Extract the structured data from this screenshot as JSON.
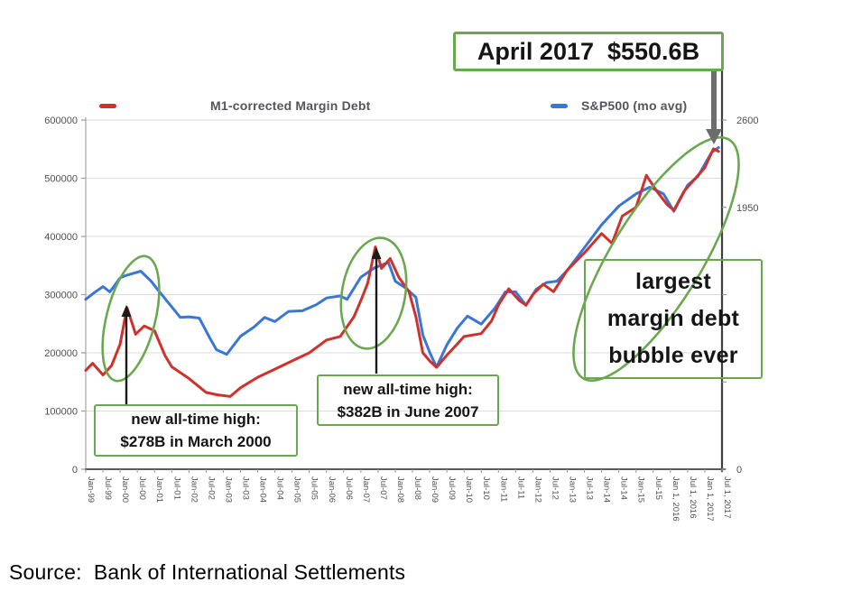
{
  "accent_colors": {
    "annotation_green": "#6aa84f",
    "margin_debt_red": "#cf312c",
    "sp500_blue": "#3a76d8",
    "big_arrow_gray": "#6d6d6d",
    "small_arrow_black": "#1a1a1a"
  },
  "legend": {
    "items": [
      {
        "label": "M1-corrected Margin Debt",
        "color": "#cf312c"
      },
      {
        "label": "S&P500 (mo avg)",
        "color": "#3a76d8"
      }
    ]
  },
  "annotations": {
    "april_label": "April 2017  $550.6B",
    "high_2000": {
      "line1": "new all-time high:",
      "line2": "$278B in March 2000"
    },
    "high_2007": {
      "line1": "new all-time high:",
      "line2": "$382B in June 2007"
    },
    "bubble": {
      "line1": "largest",
      "line2": "margin debt",
      "line3": "bubble ever"
    }
  },
  "source": "Source:  Bank of International Settlements",
  "chart_data": {
    "type": "line",
    "title": "",
    "legend_position": "top",
    "grid": true,
    "x_axis": {
      "first_tick_year": 1999.0,
      "tick_step_years": 0.5,
      "tick_labels": [
        "Jan-99",
        "Jul-99",
        "Jan-00",
        "Jul-00",
        "Jan-01",
        "Jul-01",
        "Jan-02",
        "Jul-02",
        "Jan-03",
        "Jul-03",
        "Jan-04",
        "Jul-04",
        "Jan-05",
        "Jul-05",
        "Jan-06",
        "Jul-06",
        "Jan-07",
        "Jul-07",
        "Jan-08",
        "Jul-08",
        "Jan-09",
        "Jul-09",
        "Jan-10",
        "Jul-10",
        "Jan-11",
        "Jul-11",
        "Jan-12",
        "Jul-12",
        "Jan-13",
        "Jul-13",
        "Jan-14",
        "Jul-14",
        "Jan-15",
        "Jul-15",
        "Jan 1, 2016",
        "Jul 1, 2016",
        "Jan 1, 2017",
        "Jul 1, 2017"
      ]
    },
    "y_left": {
      "min": 0,
      "max": 600000,
      "ticks": [
        0,
        100000,
        200000,
        300000,
        400000,
        500000,
        600000
      ],
      "tick_labels": [
        "0",
        "100000",
        "200000",
        "300000",
        "400000",
        "500000",
        "600000"
      ]
    },
    "y_right": {
      "min": 0,
      "max": 2600,
      "ticks": [
        0,
        650,
        1300,
        1950,
        2600
      ],
      "tick_labels": [
        "0",
        "",
        "",
        "1950",
        "2600"
      ]
    },
    "labeled_points": [
      {
        "series": "M1-corrected Margin Debt",
        "date": "March 2000",
        "value": 278000,
        "value_label": "$278B"
      },
      {
        "series": "M1-corrected Margin Debt",
        "date": "June 2007",
        "value": 382000,
        "value_label": "$382B"
      },
      {
        "series": "M1-corrected Margin Debt",
        "date": "April 2017",
        "value": 550600,
        "value_label": "$550.6B"
      }
    ],
    "series": [
      {
        "name": "M1-corrected Margin Debt",
        "axis": "left",
        "color": "#cf312c",
        "points": [
          [
            1999.0,
            170000
          ],
          [
            1999.2,
            182000
          ],
          [
            1999.5,
            162000
          ],
          [
            1999.75,
            178000
          ],
          [
            2000.0,
            215000
          ],
          [
            2000.2,
            278000
          ],
          [
            2000.45,
            232000
          ],
          [
            2000.7,
            246000
          ],
          [
            2001.0,
            238000
          ],
          [
            2001.3,
            196000
          ],
          [
            2001.5,
            176000
          ],
          [
            2002.0,
            156000
          ],
          [
            2002.5,
            132000
          ],
          [
            2002.8,
            128000
          ],
          [
            2003.2,
            125000
          ],
          [
            2003.5,
            140000
          ],
          [
            2004.0,
            158000
          ],
          [
            2004.5,
            172000
          ],
          [
            2005.0,
            186000
          ],
          [
            2005.5,
            200000
          ],
          [
            2006.0,
            222000
          ],
          [
            2006.4,
            228000
          ],
          [
            2006.8,
            262000
          ],
          [
            2007.0,
            290000
          ],
          [
            2007.2,
            320000
          ],
          [
            2007.42,
            382000
          ],
          [
            2007.6,
            345000
          ],
          [
            2007.85,
            362000
          ],
          [
            2008.1,
            330000
          ],
          [
            2008.4,
            305000
          ],
          [
            2008.6,
            262000
          ],
          [
            2008.8,
            200000
          ],
          [
            2009.0,
            186000
          ],
          [
            2009.2,
            175000
          ],
          [
            2009.5,
            196000
          ],
          [
            2009.8,
            215000
          ],
          [
            2010.0,
            228000
          ],
          [
            2010.5,
            233000
          ],
          [
            2010.8,
            255000
          ],
          [
            2011.0,
            282000
          ],
          [
            2011.3,
            310000
          ],
          [
            2011.6,
            290000
          ],
          [
            2011.8,
            282000
          ],
          [
            2012.0,
            300000
          ],
          [
            2012.3,
            318000
          ],
          [
            2012.6,
            305000
          ],
          [
            2013.0,
            342000
          ],
          [
            2013.5,
            372000
          ],
          [
            2014.0,
            405000
          ],
          [
            2014.3,
            388000
          ],
          [
            2014.6,
            435000
          ],
          [
            2015.0,
            450000
          ],
          [
            2015.3,
            505000
          ],
          [
            2015.6,
            478000
          ],
          [
            2015.9,
            455000
          ],
          [
            2016.1,
            445000
          ],
          [
            2016.4,
            478000
          ],
          [
            2016.7,
            498000
          ],
          [
            2017.0,
            518000
          ],
          [
            2017.25,
            550600
          ],
          [
            2017.4,
            546000
          ]
        ]
      },
      {
        "name": "S&P500 (mo avg)",
        "axis": "right",
        "color": "#3a76d8",
        "points": [
          [
            1999.0,
            1265
          ],
          [
            1999.25,
            1315
          ],
          [
            1999.5,
            1360
          ],
          [
            1999.7,
            1320
          ],
          [
            2000.0,
            1425
          ],
          [
            2000.2,
            1445
          ],
          [
            2000.6,
            1475
          ],
          [
            2000.9,
            1400
          ],
          [
            2001.1,
            1335
          ],
          [
            2001.4,
            1240
          ],
          [
            2001.75,
            1130
          ],
          [
            2002.0,
            1135
          ],
          [
            2002.3,
            1125
          ],
          [
            2002.6,
            980
          ],
          [
            2002.8,
            890
          ],
          [
            2003.1,
            855
          ],
          [
            2003.5,
            990
          ],
          [
            2003.9,
            1060
          ],
          [
            2004.2,
            1130
          ],
          [
            2004.5,
            1100
          ],
          [
            2004.9,
            1175
          ],
          [
            2005.3,
            1180
          ],
          [
            2005.7,
            1225
          ],
          [
            2006.0,
            1275
          ],
          [
            2006.4,
            1290
          ],
          [
            2006.6,
            1265
          ],
          [
            2007.0,
            1430
          ],
          [
            2007.4,
            1500
          ],
          [
            2007.8,
            1540
          ],
          [
            2008.0,
            1400
          ],
          [
            2008.3,
            1350
          ],
          [
            2008.6,
            1280
          ],
          [
            2008.8,
            1000
          ],
          [
            2009.0,
            870
          ],
          [
            2009.2,
            760
          ],
          [
            2009.5,
            925
          ],
          [
            2009.8,
            1050
          ],
          [
            2010.1,
            1140
          ],
          [
            2010.5,
            1080
          ],
          [
            2010.9,
            1200
          ],
          [
            2011.2,
            1320
          ],
          [
            2011.5,
            1320
          ],
          [
            2011.8,
            1220
          ],
          [
            2012.1,
            1340
          ],
          [
            2012.4,
            1390
          ],
          [
            2012.7,
            1400
          ],
          [
            2013.0,
            1480
          ],
          [
            2013.5,
            1650
          ],
          [
            2014.0,
            1820
          ],
          [
            2014.5,
            1960
          ],
          [
            2015.0,
            2050
          ],
          [
            2015.4,
            2100
          ],
          [
            2015.8,
            2050
          ],
          [
            2016.1,
            1920
          ],
          [
            2016.5,
            2115
          ],
          [
            2016.8,
            2180
          ],
          [
            2017.0,
            2270
          ],
          [
            2017.2,
            2360
          ],
          [
            2017.4,
            2395
          ]
        ]
      }
    ]
  }
}
